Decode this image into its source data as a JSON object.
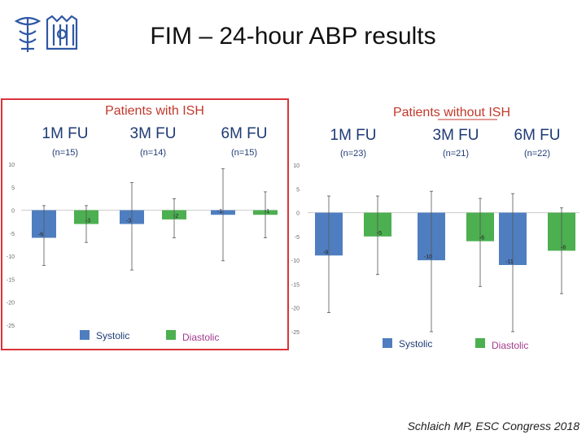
{
  "slide": {
    "title": "FIM – 24-hour ABP results",
    "credit": "Schlaich MP, ESC Congress 2018"
  },
  "colors": {
    "systolic": "#4f7ec0",
    "diastolic": "#4caf50",
    "panel_border": "#d9343a",
    "group_title": "#c0392b",
    "header_text": "#1f3b75"
  },
  "chart_data": [
    {
      "type": "bar",
      "title": "Patients with ISH",
      "highlighted": true,
      "groups": [
        {
          "label": "1M FU",
          "n": "(n=15)"
        },
        {
          "label": "3M FU",
          "n": "(n=14)"
        },
        {
          "label": "6M FU",
          "n": "(n=15)"
        }
      ],
      "series": [
        {
          "name": "Systolic",
          "values": [
            -6,
            -3,
            -1
          ],
          "err_low": [
            -12,
            -13,
            -11
          ],
          "err_high": [
            1,
            6,
            9
          ]
        },
        {
          "name": "Diastolic",
          "values": [
            -3,
            -2,
            -1
          ],
          "err_low": [
            -7,
            -6,
            -6
          ],
          "err_high": [
            1,
            2.5,
            4
          ]
        }
      ],
      "ylim": [
        -25,
        10
      ],
      "yticks": [
        10,
        5,
        0,
        -5,
        -10,
        -15,
        -20,
        -25
      ],
      "legend": "bottom"
    },
    {
      "type": "bar",
      "title": "Patients without ISH",
      "highlighted": false,
      "groups": [
        {
          "label": "1M FU",
          "n": "(n=23)"
        },
        {
          "label": "3M FU",
          "n": "(n=21)"
        },
        {
          "label": "6M FU",
          "n": "(n=22)"
        }
      ],
      "series": [
        {
          "name": "Systolic",
          "values": [
            -9,
            -10,
            -11
          ],
          "err_low": [
            -21,
            -25,
            -25
          ],
          "err_high": [
            3.5,
            4.5,
            4
          ]
        },
        {
          "name": "Diastolic",
          "values": [
            -5,
            -6,
            -8
          ],
          "err_low": [
            -13,
            -15.5,
            -17
          ],
          "err_high": [
            3.5,
            3,
            1
          ]
        }
      ],
      "ylim": [
        -25,
        10
      ],
      "yticks": [
        10,
        5,
        0,
        -5,
        -10,
        -15,
        -20,
        -25
      ],
      "legend": "bottom"
    }
  ]
}
